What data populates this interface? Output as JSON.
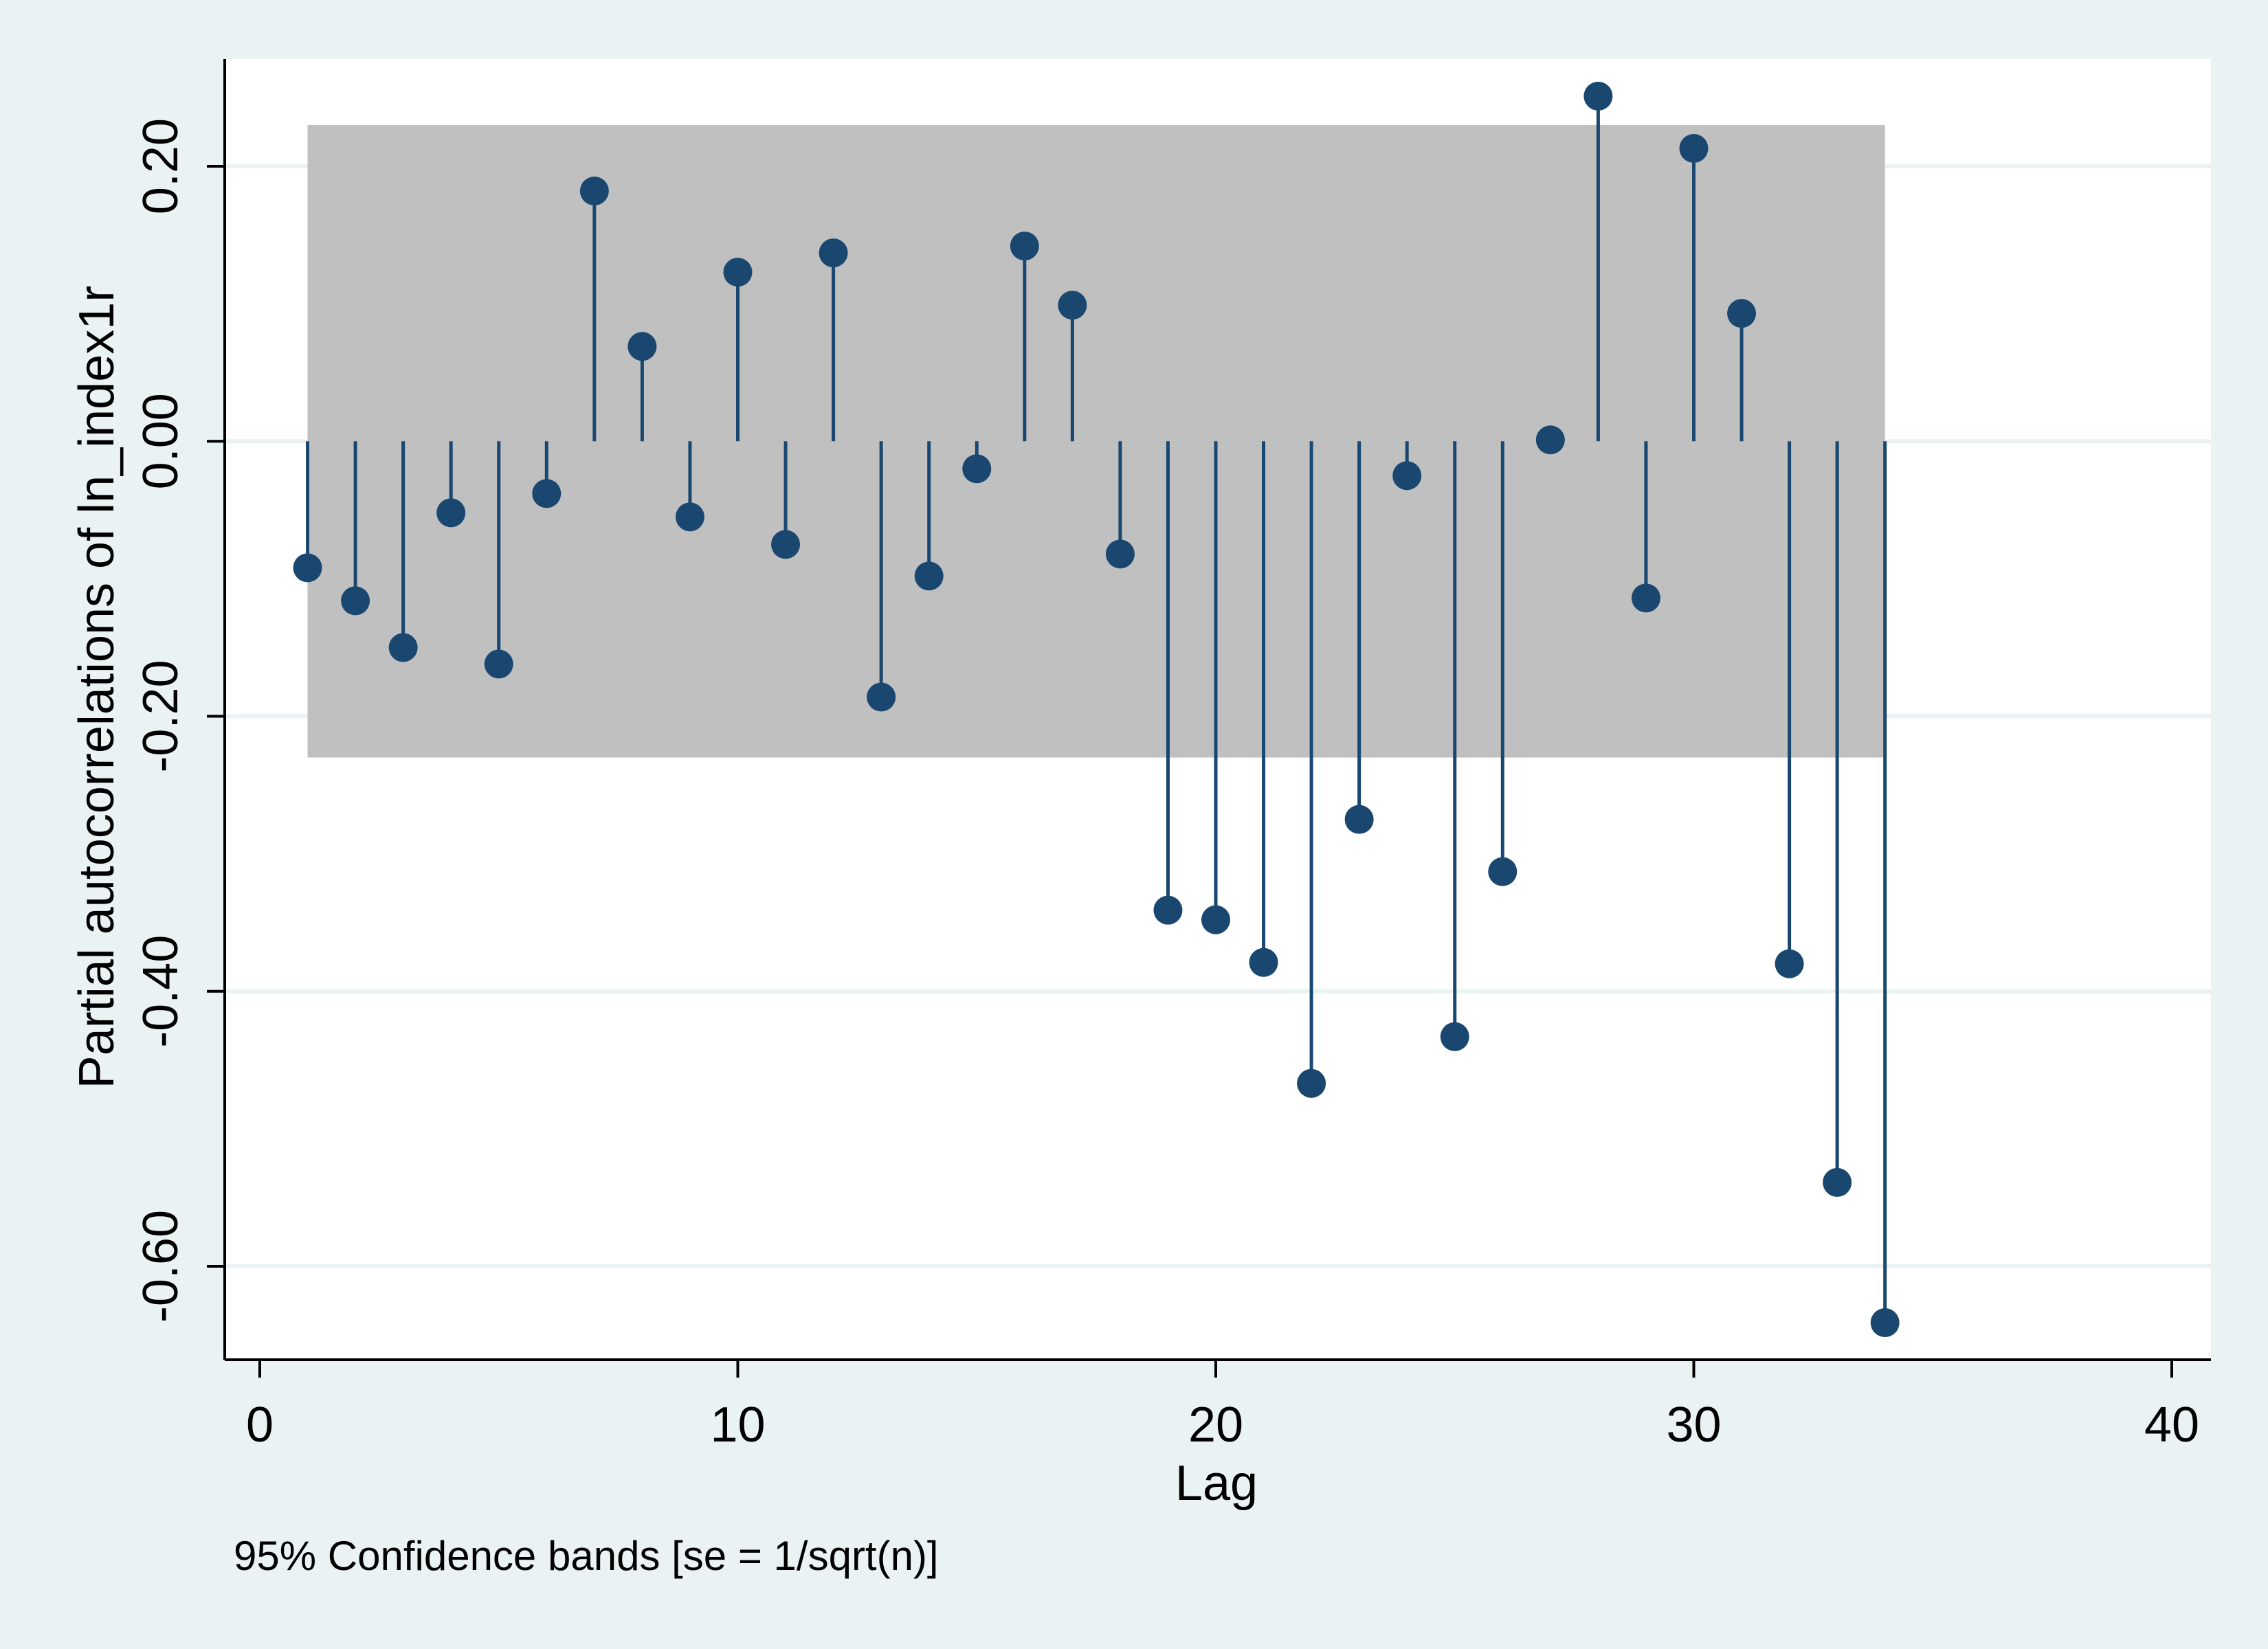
{
  "chart_data": {
    "type": "scatter",
    "subtype": "stem",
    "xlabel": "Lag",
    "ylabel": "Partial autocorrelations of ln_index1r",
    "note": "95% Confidence bands [se = 1/sqrt(n)]",
    "xlim": [
      0,
      40
    ],
    "ylim": [
      -0.66,
      0.28
    ],
    "x_ticks": [
      0,
      10,
      20,
      30,
      40
    ],
    "x_tick_labels": [
      "0",
      "10",
      "20",
      "30",
      "40"
    ],
    "y_ticks": [
      -0.6,
      -0.4,
      -0.2,
      0.0,
      0.2
    ],
    "y_tick_labels": [
      "-0.60",
      "-0.40",
      "-0.20",
      "0.00",
      "0.20"
    ],
    "grid": "horizontal",
    "confidence_band": {
      "lag_start": 1,
      "lag_end": 34,
      "lower": -0.23,
      "upper": 0.23
    },
    "series": [
      {
        "x": [
          1,
          2,
          3,
          4,
          5,
          6,
          7,
          8,
          9,
          10,
          11,
          12,
          13,
          14,
          15,
          16,
          17,
          18,
          19,
          20,
          21,
          22,
          23,
          24,
          25,
          26,
          27,
          28,
          29,
          30,
          31,
          32,
          33,
          34
        ],
        "values": [
          -0.092,
          -0.116,
          -0.15,
          -0.052,
          -0.162,
          -0.038,
          0.182,
          0.069,
          -0.055,
          0.123,
          -0.075,
          0.137,
          -0.186,
          -0.098,
          -0.02,
          0.142,
          0.099,
          -0.082,
          -0.341,
          -0.348,
          -0.379,
          -0.467,
          -0.275,
          -0.025,
          -0.433,
          -0.313,
          0.001,
          0.251,
          -0.114,
          0.213,
          0.093,
          -0.38,
          -0.539,
          -0.641
        ]
      }
    ],
    "colors": {
      "background": "#eaf2f3",
      "plot_background": "#ffffff",
      "gridline": "#eaf2f3",
      "band": "#c0c0c0",
      "marker": "#1a476f",
      "axis": "#000000"
    }
  }
}
